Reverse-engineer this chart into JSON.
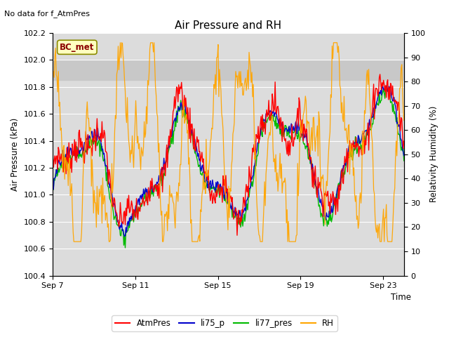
{
  "title": "Air Pressure and RH",
  "top_left_text": "No data for f_AtmPres",
  "xlabel": "Time",
  "ylabel_left": "Air Pressure (kPa)",
  "ylabel_right": "Relativity Humidity (%)",
  "ylim_left": [
    100.4,
    102.2
  ],
  "ylim_right": [
    0,
    100
  ],
  "yticks_left": [
    100.4,
    100.6,
    100.8,
    101.0,
    101.2,
    101.4,
    101.6,
    101.8,
    102.0,
    102.2
  ],
  "yticks_right": [
    0,
    10,
    20,
    30,
    40,
    50,
    60,
    70,
    80,
    90,
    100
  ],
  "xtick_labels": [
    "Sep 7",
    "Sep 11",
    "Sep 15",
    "Sep 19",
    "Sep 23"
  ],
  "xtick_pos": [
    0,
    4,
    8,
    12,
    16
  ],
  "xlim": [
    0,
    17
  ],
  "shaded_region": [
    101.85,
    102.0
  ],
  "colors": {
    "AtmPres": "#FF0000",
    "li75_p": "#0000CC",
    "li77_pres": "#00BB00",
    "RH": "#FFA500",
    "background": "#DCDCDC",
    "shaded": "#C8C8C8"
  },
  "legend_entries": [
    "AtmPres",
    "li75_p",
    "li77_pres",
    "RH"
  ],
  "bc_met_label": "BC_met",
  "n_points": 500
}
